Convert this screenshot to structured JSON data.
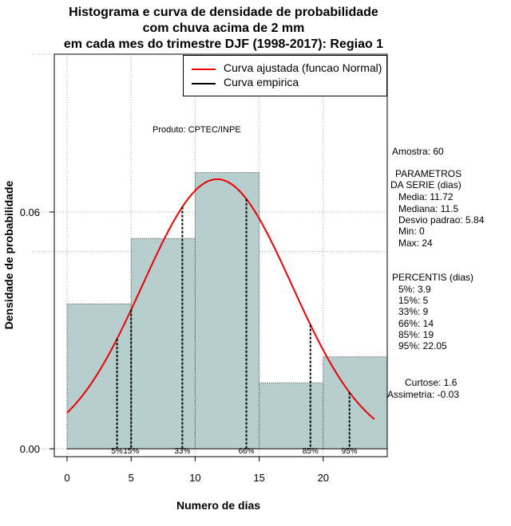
{
  "title": {
    "lines": [
      "Histograma e curva de densidade de probabilidade",
      "com chuva acima de 2 mm",
      "em cada mes do trimestre DJF (1998-2017): Regiao 1"
    ]
  },
  "producer": "Produto: CPTEC/INPE",
  "legend": {
    "normal_label": "Curva ajustada (funcao Normal)",
    "empirical_label": "Curva empirica",
    "normal_color": "#ee0000",
    "empirical_color": "#000000"
  },
  "stats": {
    "amostra": "Amostra: 60",
    "parametros_title_1": "PARAMETROS",
    "parametros_title_2": "DA SERIE (dias)",
    "media": "Media: 11.72",
    "mediana": "Mediana: 11.5",
    "desvio": "Desvio padrao: 5.84",
    "min": "Min: 0",
    "max": "Max: 24",
    "percentis_title": "PERCENTIS (dias)",
    "p5": "5%: 3.9",
    "p15": "15%: 5",
    "p33": "33%: 9",
    "p66": "66%: 14",
    "p85": "85%: 19",
    "p95": "95%: 22.05",
    "curtose": "Curtose: 1.6",
    "assimetria": "Assimetria: -0.03"
  },
  "chart_data": {
    "type": "bar",
    "title": "Histograma e curva de densidade de probabilidade com chuva acima de 2 mm em cada mes do trimestre DJF (1998-2017): Regiao 1",
    "xlabel": "Numero de dias",
    "ylabel": "Densidade de probabilidade",
    "bins": [
      [
        0,
        5
      ],
      [
        5,
        10
      ],
      [
        10,
        15
      ],
      [
        15,
        20
      ],
      [
        20,
        25
      ]
    ],
    "values": [
      0.0367,
      0.0533,
      0.07,
      0.0167,
      0.0233
    ],
    "bar_color": "#b7cece",
    "xlim": [
      -1,
      25
    ],
    "ylim": [
      -0.002,
      0.1
    ],
    "x_ticks": [
      0,
      5,
      10,
      15,
      20
    ],
    "y_ticks": [
      0.0,
      0.06
    ],
    "y_tick_labels": [
      "0.00",
      "0.06"
    ],
    "x_gridlines": [
      0,
      5,
      10,
      15,
      20
    ],
    "y_gridlines": [
      0.0,
      0.06
    ],
    "y_gridlines_extra": [
      0.05,
      0.1
    ],
    "normal_fit": {
      "mean": 11.72,
      "sd": 5.84,
      "x_range": [
        0,
        24
      ]
    },
    "percentiles": [
      {
        "label": "5%",
        "x": 3.9
      },
      {
        "label": "15%",
        "x": 5
      },
      {
        "label": "33%",
        "x": 9
      },
      {
        "label": "66%",
        "x": 14
      },
      {
        "label": "85%",
        "x": 19
      },
      {
        "label": "95%",
        "x": 22.05
      }
    ]
  }
}
